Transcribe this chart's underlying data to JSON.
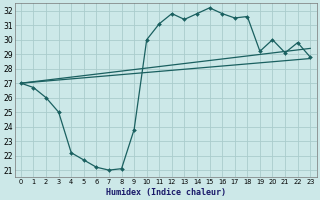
{
  "xlabel": "Humidex (Indice chaleur)",
  "bg_color": "#cce8e8",
  "grid_color": "#aacccc",
  "line_color": "#1a6060",
  "xlim": [
    -0.5,
    23.5
  ],
  "ylim": [
    20.5,
    32.5
  ],
  "yticks": [
    21,
    22,
    23,
    24,
    25,
    26,
    27,
    28,
    29,
    30,
    31,
    32
  ],
  "xticks": [
    0,
    1,
    2,
    3,
    4,
    5,
    6,
    7,
    8,
    9,
    10,
    11,
    12,
    13,
    14,
    15,
    16,
    17,
    18,
    19,
    20,
    21,
    22,
    23
  ],
  "line1_x": [
    0,
    1,
    2,
    3,
    4,
    5,
    6,
    7,
    8,
    9,
    10,
    11,
    12,
    13,
    14,
    15,
    16,
    17,
    18,
    19,
    20,
    21,
    22,
    23
  ],
  "line1_y": [
    27.0,
    26.7,
    26.0,
    25.0,
    22.2,
    21.7,
    21.2,
    21.0,
    21.1,
    23.8,
    30.0,
    31.1,
    31.8,
    31.4,
    31.8,
    32.2,
    31.8,
    31.5,
    31.6,
    29.2,
    30.0,
    29.1,
    29.8,
    28.8
  ],
  "line2_x": [
    0,
    23
  ],
  "line2_y": [
    27.0,
    28.7
  ],
  "line3_x": [
    0,
    23
  ],
  "line3_y": [
    27.0,
    29.4
  ],
  "markersize": 2.0,
  "linewidth": 0.9
}
